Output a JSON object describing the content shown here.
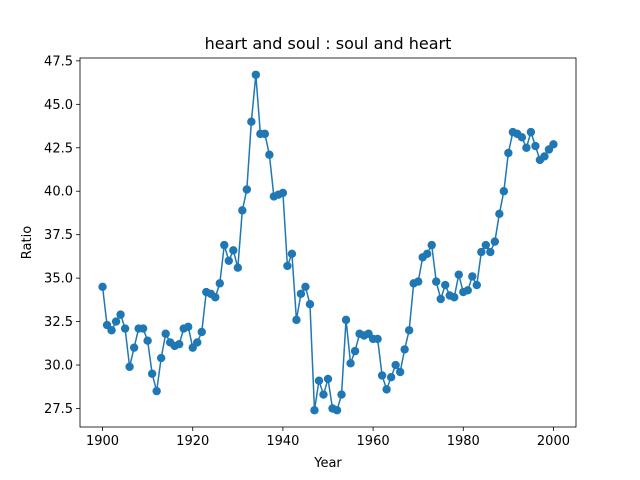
{
  "chart_data": {
    "type": "line",
    "title": "heart and soul : soul and heart",
    "xlabel": "Year",
    "ylabel": "Ratio",
    "xlim": [
      1900,
      2000
    ],
    "ylim": [
      27.4,
      46.7
    ],
    "xticks": [
      1900,
      1920,
      1940,
      1960,
      1980,
      2000
    ],
    "yticks": [
      27.5,
      30.0,
      32.5,
      35.0,
      37.5,
      40.0,
      42.5,
      45.0,
      47.5
    ],
    "ytick_labels": [
      "27.5",
      "30.0",
      "32.5",
      "35.0",
      "37.5",
      "40.0",
      "42.5",
      "45.0",
      "47.5"
    ],
    "grid": false,
    "legend": "none",
    "color": "#1f77b4",
    "markers": true,
    "x": [
      1900,
      1901,
      1902,
      1903,
      1904,
      1905,
      1906,
      1907,
      1908,
      1909,
      1910,
      1911,
      1912,
      1913,
      1914,
      1915,
      1916,
      1917,
      1918,
      1919,
      1920,
      1921,
      1922,
      1923,
      1924,
      1925,
      1926,
      1927,
      1928,
      1929,
      1930,
      1931,
      1932,
      1933,
      1934,
      1935,
      1936,
      1937,
      1938,
      1939,
      1940,
      1941,
      1942,
      1943,
      1944,
      1945,
      1946,
      1947,
      1948,
      1949,
      1950,
      1951,
      1952,
      1953,
      1954,
      1955,
      1956,
      1957,
      1958,
      1959,
      1960,
      1961,
      1962,
      1963,
      1964,
      1965,
      1966,
      1967,
      1968,
      1969,
      1970,
      1971,
      1972,
      1973,
      1974,
      1975,
      1976,
      1977,
      1978,
      1979,
      1980,
      1981,
      1982,
      1983,
      1984,
      1985,
      1986,
      1987,
      1988,
      1989,
      1990,
      1991,
      1992,
      1993,
      1994,
      1995,
      1996,
      1997,
      1998,
      1999,
      2000
    ],
    "series": [
      {
        "values": [
          34.5,
          32.3,
          32.0,
          32.5,
          32.9,
          32.1,
          29.9,
          31.0,
          32.1,
          32.1,
          31.4,
          29.5,
          28.5,
          30.4,
          31.8,
          31.3,
          31.1,
          31.2,
          32.1,
          32.2,
          31.0,
          31.3,
          31.9,
          34.2,
          34.1,
          33.9,
          34.7,
          36.9,
          36.0,
          36.6,
          35.6,
          38.9,
          40.1,
          44.0,
          46.7,
          43.3,
          43.3,
          42.1,
          39.7,
          39.8,
          39.9,
          35.7,
          36.4,
          32.6,
          34.1,
          34.5,
          33.5,
          27.4,
          29.1,
          28.3,
          29.2,
          27.5,
          27.4,
          28.3,
          32.6,
          30.1,
          30.8,
          31.8,
          31.7,
          31.8,
          31.5,
          31.5,
          29.4,
          28.6,
          29.3,
          30.0,
          29.6,
          30.9,
          32.0,
          34.7,
          34.8,
          36.2,
          36.4,
          36.9,
          34.8,
          33.8,
          34.6,
          34.0,
          33.9,
          35.2,
          34.2,
          34.3,
          35.1,
          34.6,
          36.5,
          36.9,
          36.5,
          37.1,
          38.7,
          40.0,
          42.2,
          43.4,
          43.3,
          43.1,
          42.5,
          43.4,
          42.6,
          41.8,
          42.0,
          42.4,
          42.7
        ]
      }
    ]
  }
}
